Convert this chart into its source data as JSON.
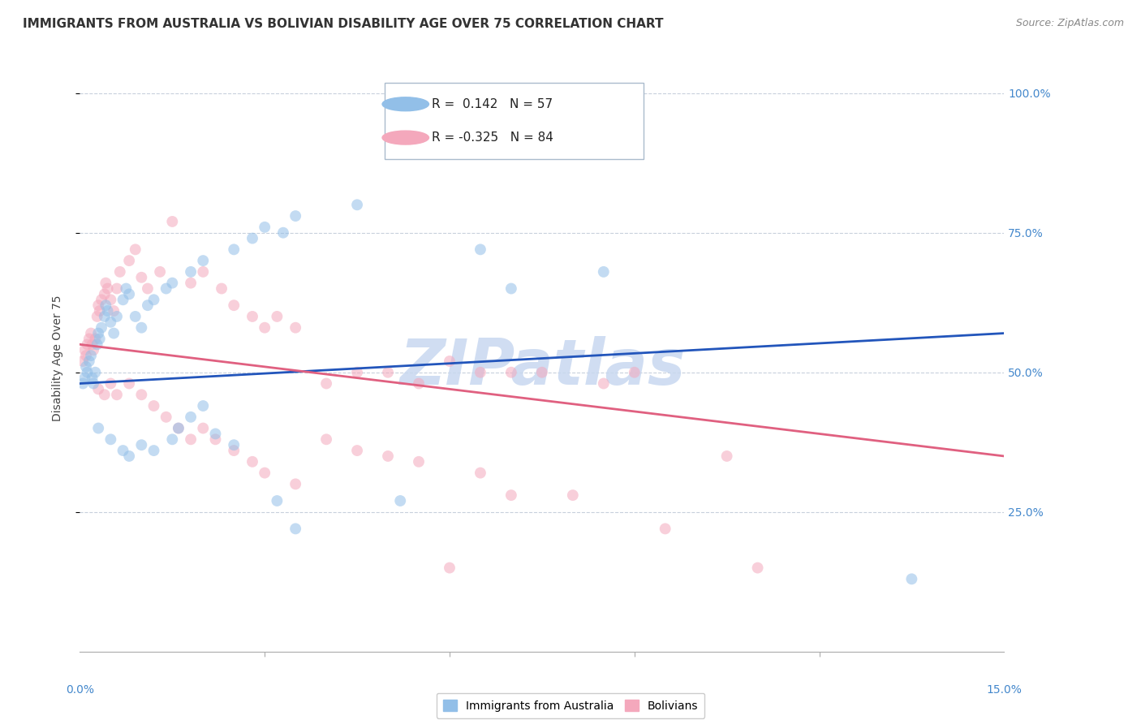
{
  "title": "IMMIGRANTS FROM AUSTRALIA VS BOLIVIAN DISABILITY AGE OVER 75 CORRELATION CHART",
  "source": "Source: ZipAtlas.com",
  "ylabel": "Disability Age Over 75",
  "xlim": [
    0,
    15
  ],
  "ylim": [
    0,
    105
  ],
  "ytick_vals": [
    25,
    50,
    75,
    100
  ],
  "ytick_labels": [
    "25.0%",
    "50.0%",
    "75.0%",
    "100.0%"
  ],
  "watermark": "ZIPatlas",
  "blue_scatter": [
    [
      0.05,
      48
    ],
    [
      0.08,
      49
    ],
    [
      0.1,
      51
    ],
    [
      0.12,
      50
    ],
    [
      0.15,
      52
    ],
    [
      0.18,
      53
    ],
    [
      0.2,
      49
    ],
    [
      0.22,
      48
    ],
    [
      0.25,
      50
    ],
    [
      0.28,
      55
    ],
    [
      0.3,
      57
    ],
    [
      0.32,
      56
    ],
    [
      0.35,
      58
    ],
    [
      0.4,
      60
    ],
    [
      0.42,
      62
    ],
    [
      0.45,
      61
    ],
    [
      0.5,
      59
    ],
    [
      0.55,
      57
    ],
    [
      0.6,
      60
    ],
    [
      0.7,
      63
    ],
    [
      0.75,
      65
    ],
    [
      0.8,
      64
    ],
    [
      0.9,
      60
    ],
    [
      1.0,
      58
    ],
    [
      1.1,
      62
    ],
    [
      1.2,
      63
    ],
    [
      1.4,
      65
    ],
    [
      1.5,
      66
    ],
    [
      1.8,
      68
    ],
    [
      2.0,
      70
    ],
    [
      2.5,
      72
    ],
    [
      2.8,
      74
    ],
    [
      3.0,
      76
    ],
    [
      3.3,
      75
    ],
    [
      3.5,
      78
    ],
    [
      4.5,
      80
    ],
    [
      5.5,
      93
    ],
    [
      6.5,
      72
    ],
    [
      7.0,
      65
    ],
    [
      8.5,
      68
    ],
    [
      0.3,
      40
    ],
    [
      0.5,
      38
    ],
    [
      0.7,
      36
    ],
    [
      0.8,
      35
    ],
    [
      1.0,
      37
    ],
    [
      1.2,
      36
    ],
    [
      1.5,
      38
    ],
    [
      1.6,
      40
    ],
    [
      1.8,
      42
    ],
    [
      2.0,
      44
    ],
    [
      2.2,
      39
    ],
    [
      2.5,
      37
    ],
    [
      3.2,
      27
    ],
    [
      3.5,
      22
    ],
    [
      5.2,
      27
    ],
    [
      13.5,
      13
    ]
  ],
  "pink_scatter": [
    [
      0.05,
      52
    ],
    [
      0.08,
      54
    ],
    [
      0.1,
      53
    ],
    [
      0.12,
      55
    ],
    [
      0.15,
      56
    ],
    [
      0.18,
      57
    ],
    [
      0.2,
      55
    ],
    [
      0.22,
      54
    ],
    [
      0.25,
      56
    ],
    [
      0.28,
      60
    ],
    [
      0.3,
      62
    ],
    [
      0.32,
      61
    ],
    [
      0.35,
      63
    ],
    [
      0.4,
      64
    ],
    [
      0.42,
      66
    ],
    [
      0.45,
      65
    ],
    [
      0.5,
      63
    ],
    [
      0.55,
      61
    ],
    [
      0.6,
      65
    ],
    [
      0.65,
      68
    ],
    [
      0.8,
      70
    ],
    [
      0.9,
      72
    ],
    [
      1.0,
      67
    ],
    [
      1.1,
      65
    ],
    [
      1.3,
      68
    ],
    [
      1.5,
      77
    ],
    [
      1.8,
      66
    ],
    [
      2.0,
      68
    ],
    [
      2.3,
      65
    ],
    [
      2.5,
      62
    ],
    [
      2.8,
      60
    ],
    [
      3.0,
      58
    ],
    [
      3.2,
      60
    ],
    [
      3.5,
      58
    ],
    [
      4.0,
      48
    ],
    [
      4.5,
      50
    ],
    [
      5.0,
      50
    ],
    [
      5.5,
      48
    ],
    [
      6.0,
      52
    ],
    [
      6.5,
      50
    ],
    [
      7.0,
      50
    ],
    [
      7.5,
      50
    ],
    [
      8.5,
      48
    ],
    [
      9.0,
      50
    ],
    [
      10.5,
      35
    ],
    [
      0.3,
      47
    ],
    [
      0.4,
      46
    ],
    [
      0.5,
      48
    ],
    [
      0.6,
      46
    ],
    [
      0.8,
      48
    ],
    [
      1.0,
      46
    ],
    [
      1.2,
      44
    ],
    [
      1.4,
      42
    ],
    [
      1.6,
      40
    ],
    [
      1.8,
      38
    ],
    [
      2.0,
      40
    ],
    [
      2.2,
      38
    ],
    [
      2.5,
      36
    ],
    [
      2.8,
      34
    ],
    [
      3.0,
      32
    ],
    [
      3.5,
      30
    ],
    [
      4.0,
      38
    ],
    [
      4.5,
      36
    ],
    [
      5.0,
      35
    ],
    [
      5.5,
      34
    ],
    [
      6.5,
      32
    ],
    [
      7.0,
      28
    ],
    [
      8.0,
      28
    ],
    [
      9.5,
      22
    ],
    [
      11.0,
      15
    ],
    [
      6.0,
      15
    ]
  ],
  "blue_line": {
    "x0": 0,
    "y0": 48,
    "x1": 15,
    "y1": 57
  },
  "pink_line": {
    "x0": 0,
    "y0": 55,
    "x1": 15,
    "y1": 35
  },
  "title_fontsize": 11,
  "source_fontsize": 9,
  "label_fontsize": 10,
  "tick_fontsize": 10,
  "legend_fontsize": 11,
  "scatter_size": 100,
  "scatter_alpha": 0.55,
  "blue_color": "#92bfe8",
  "pink_color": "#f4a8bc",
  "line_blue": "#2255bb",
  "line_pink": "#e06080",
  "grid_color": "#c8d0dc",
  "background_color": "#ffffff",
  "watermark_color": "#c8d8f0",
  "watermark_fontsize": 56,
  "right_axis_color": "#4488cc"
}
